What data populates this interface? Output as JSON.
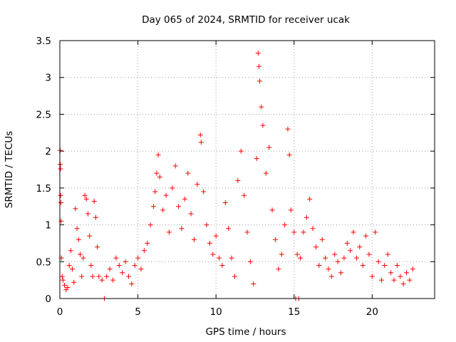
{
  "chart_data": {
    "type": "scatter",
    "title": "Day 065 of 2024, SRMTID for receiver ucak",
    "xlabel": "GPS time / hours",
    "ylabel": "SRMTID / TECUs",
    "xlim": [
      0,
      24
    ],
    "ylim": [
      0,
      3.5
    ],
    "grid": true,
    "marker": "+",
    "color": "#ff0000",
    "x_ticks": [
      0,
      5,
      10,
      15,
      20
    ],
    "x_tick_labels": [
      "0",
      "5",
      "10",
      "15",
      "20"
    ],
    "y_ticks": [
      0,
      0.5,
      1,
      1.5,
      2,
      2.5,
      3,
      3.5
    ],
    "y_tick_labels": [
      "0",
      "0.5",
      "1",
      "1.5",
      "2",
      "2.5",
      "3",
      "3.5"
    ],
    "series": [
      {
        "name": "SRMTID",
        "points": [
          [
            0.02,
            2.01
          ],
          [
            0.03,
            1.82
          ],
          [
            0.04,
            1.76
          ],
          [
            0.05,
            1.4
          ],
          [
            0.07,
            1.3
          ],
          [
            0.08,
            1.05
          ],
          [
            0.1,
            0.55
          ],
          [
            0.15,
            0.3
          ],
          [
            0.2,
            0.25
          ],
          [
            0.3,
            0.18
          ],
          [
            0.4,
            0.12
          ],
          [
            0.5,
            0.15
          ],
          [
            0.6,
            0.45
          ],
          [
            0.7,
            0.65
          ],
          [
            0.8,
            0.4
          ],
          [
            0.9,
            0.22
          ],
          [
            1.0,
            1.22
          ],
          [
            1.1,
            0.95
          ],
          [
            1.2,
            0.8
          ],
          [
            1.3,
            0.6
          ],
          [
            1.4,
            0.3
          ],
          [
            1.5,
            0.55
          ],
          [
            1.6,
            1.4
          ],
          [
            1.7,
            1.35
          ],
          [
            1.8,
            1.15
          ],
          [
            1.9,
            0.85
          ],
          [
            2.0,
            0.45
          ],
          [
            2.1,
            0.3
          ],
          [
            2.2,
            1.32
          ],
          [
            2.3,
            1.1
          ],
          [
            2.4,
            0.7
          ],
          [
            2.5,
            0.3
          ],
          [
            2.7,
            0.25
          ],
          [
            2.85,
            0.0
          ],
          [
            3.0,
            0.3
          ],
          [
            3.2,
            0.4
          ],
          [
            3.4,
            0.25
          ],
          [
            3.6,
            0.55
          ],
          [
            3.8,
            0.45
          ],
          [
            4.0,
            0.35
          ],
          [
            4.2,
            0.5
          ],
          [
            4.4,
            0.3
          ],
          [
            4.6,
            0.2
          ],
          [
            4.8,
            0.45
          ],
          [
            5.0,
            0.55
          ],
          [
            5.2,
            0.4
          ],
          [
            5.4,
            0.65
          ],
          [
            5.6,
            0.75
          ],
          [
            5.8,
            1.0
          ],
          [
            6.0,
            1.25
          ],
          [
            6.1,
            1.45
          ],
          [
            6.2,
            1.7
          ],
          [
            6.3,
            1.95
          ],
          [
            6.4,
            1.65
          ],
          [
            6.6,
            1.2
          ],
          [
            6.8,
            1.4
          ],
          [
            7.0,
            0.9
          ],
          [
            7.2,
            1.5
          ],
          [
            7.4,
            1.8
          ],
          [
            7.6,
            1.25
          ],
          [
            7.8,
            0.95
          ],
          [
            8.0,
            1.35
          ],
          [
            8.2,
            1.7
          ],
          [
            8.4,
            1.15
          ],
          [
            8.6,
            0.8
          ],
          [
            8.8,
            1.55
          ],
          [
            9.0,
            2.22
          ],
          [
            9.05,
            2.12
          ],
          [
            9.2,
            1.45
          ],
          [
            9.4,
            1.0
          ],
          [
            9.6,
            0.75
          ],
          [
            9.8,
            0.6
          ],
          [
            10.0,
            0.85
          ],
          [
            10.2,
            0.55
          ],
          [
            10.4,
            0.45
          ],
          [
            10.6,
            1.3
          ],
          [
            10.8,
            0.95
          ],
          [
            11.0,
            0.55
          ],
          [
            11.2,
            0.3
          ],
          [
            11.4,
            1.6
          ],
          [
            11.6,
            2.0
          ],
          [
            11.8,
            1.4
          ],
          [
            12.0,
            0.9
          ],
          [
            12.2,
            0.5
          ],
          [
            12.4,
            0.2
          ],
          [
            12.6,
            1.9
          ],
          [
            12.7,
            3.33
          ],
          [
            12.75,
            3.15
          ],
          [
            12.8,
            2.95
          ],
          [
            12.9,
            2.6
          ],
          [
            13.0,
            2.35
          ],
          [
            13.2,
            1.7
          ],
          [
            13.4,
            2.05
          ],
          [
            13.6,
            1.2
          ],
          [
            13.8,
            0.8
          ],
          [
            14.0,
            0.4
          ],
          [
            14.2,
            0.6
          ],
          [
            14.4,
            1.0
          ],
          [
            14.6,
            2.3
          ],
          [
            14.7,
            1.95
          ],
          [
            14.8,
            1.2
          ],
          [
            15.0,
            0.9
          ],
          [
            15.2,
            0.6
          ],
          [
            15.1,
            0.0
          ],
          [
            15.3,
            0.0
          ],
          [
            15.4,
            0.55
          ],
          [
            15.6,
            0.9
          ],
          [
            15.8,
            1.1
          ],
          [
            16.0,
            1.35
          ],
          [
            16.2,
            0.95
          ],
          [
            16.4,
            0.7
          ],
          [
            16.6,
            0.45
          ],
          [
            16.8,
            0.8
          ],
          [
            17.0,
            0.55
          ],
          [
            17.2,
            0.4
          ],
          [
            17.4,
            0.3
          ],
          [
            17.6,
            0.6
          ],
          [
            17.8,
            0.5
          ],
          [
            18.0,
            0.35
          ],
          [
            18.2,
            0.55
          ],
          [
            18.4,
            0.75
          ],
          [
            18.6,
            0.65
          ],
          [
            18.8,
            0.9
          ],
          [
            19.0,
            0.55
          ],
          [
            19.2,
            0.7
          ],
          [
            19.4,
            0.45
          ],
          [
            19.6,
            0.85
          ],
          [
            19.8,
            0.6
          ],
          [
            20.0,
            0.3
          ],
          [
            20.2,
            0.9
          ],
          [
            20.4,
            0.5
          ],
          [
            20.6,
            0.25
          ],
          [
            20.8,
            0.45
          ],
          [
            21.0,
            0.6
          ],
          [
            21.2,
            0.35
          ],
          [
            21.4,
            0.25
          ],
          [
            21.6,
            0.45
          ],
          [
            21.8,
            0.3
          ],
          [
            22.0,
            0.2
          ],
          [
            22.2,
            0.35
          ],
          [
            22.4,
            0.25
          ],
          [
            22.6,
            0.4
          ]
        ]
      }
    ]
  }
}
